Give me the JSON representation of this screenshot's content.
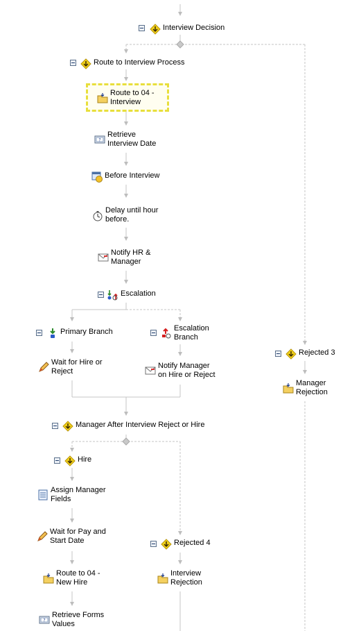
{
  "nodes": {
    "interview_decision": "Interview Decision",
    "route_to_interview_process": "Route to Interview Process",
    "route_to_04_interview": "Route to 04 -\nInterview",
    "retrieve_interview_date": "Retrieve\nInterview Date",
    "before_interview": "Before Interview",
    "delay_until_hour": "Delay until hour\nbefore.",
    "notify_hr_manager": "Notify HR &\nManager",
    "escalation": "Escalation",
    "primary_branch": "Primary Branch",
    "escalation_branch": "Escalation\nBranch",
    "wait_for_hire_or_reject": "Wait for Hire or\nReject",
    "notify_manager_on_hire": "Notify Manager\non Hire or Reject",
    "rejected_3": "Rejected 3",
    "manager_rejection": "Manager\nRejection",
    "manager_after_interview": "Manager After Interview Reject or Hire",
    "hire": "Hire",
    "assign_manager_fields": "Assign Manager\nFields",
    "wait_for_pay": "Wait for Pay and\nStart Date",
    "rejected_4": "Rejected 4",
    "route_to_04_new_hire": "Route to 04 -\nNew Hire",
    "interview_rejection": "Interview\nRejection",
    "retrieve_forms_values": "Retrieve Forms\nValues"
  },
  "colors": {
    "connector": "#c0c0c0",
    "selection": "#e8df3c",
    "decision": "#f3d21c",
    "folder": "#f4d060"
  }
}
